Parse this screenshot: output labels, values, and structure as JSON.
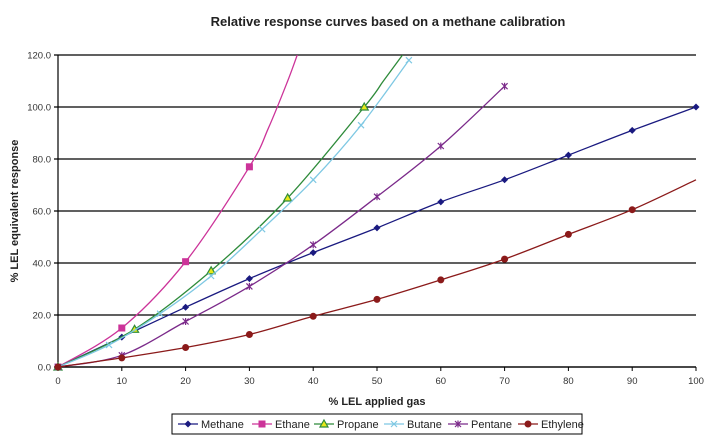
{
  "chart_data": {
    "type": "line",
    "title": "Relative response curves based on a methane calibration",
    "xlabel": "% LEL applied gas",
    "ylabel": "% LEL equivalent response",
    "xlim": [
      0,
      100
    ],
    "ylim": [
      0,
      120
    ],
    "x_ticks": [
      "0",
      "10",
      "20",
      "30",
      "40",
      "50",
      "60",
      "70",
      "80",
      "90",
      "100"
    ],
    "y_ticks": [
      "0.0",
      "20.0",
      "40.0",
      "60.0",
      "80.0",
      "100.0",
      "120.0"
    ],
    "grid": "horizontal",
    "legend_position": "bottom",
    "series": [
      {
        "name": "Methane",
        "color": "#1a1a80",
        "marker": "diamond",
        "points": [
          [
            0,
            0
          ],
          [
            10,
            11.5
          ],
          [
            20,
            23
          ],
          [
            30,
            34
          ],
          [
            40,
            44
          ],
          [
            50,
            53.5
          ],
          [
            60,
            63.5
          ],
          [
            70,
            72
          ],
          [
            80,
            81.5
          ],
          [
            90,
            91
          ],
          [
            100,
            100
          ]
        ],
        "curve_extension": []
      },
      {
        "name": "Ethane",
        "color": "#cc3399",
        "marker": "square",
        "points": [
          [
            0,
            0
          ],
          [
            10,
            15
          ],
          [
            20,
            40.5
          ],
          [
            30,
            77
          ]
        ],
        "curve_extension": [
          [
            33,
            92
          ],
          [
            36,
            110
          ],
          [
            37.5,
            120
          ]
        ]
      },
      {
        "name": "Propane",
        "color": "#2e8b3a",
        "marker": "triangle",
        "points": [
          [
            0,
            0
          ],
          [
            12,
            14.5
          ],
          [
            24,
            37
          ],
          [
            36,
            65
          ],
          [
            48,
            100
          ]
        ],
        "curve_extension": [
          [
            51,
            110
          ],
          [
            54,
            120
          ]
        ]
      },
      {
        "name": "Butane",
        "color": "#7ec8e3",
        "marker": "x",
        "points": [
          [
            0,
            0
          ],
          [
            8,
            8.5
          ],
          [
            16,
            20.5
          ],
          [
            24,
            35
          ],
          [
            32,
            53
          ],
          [
            40,
            72
          ],
          [
            47.5,
            93
          ],
          [
            55,
            118
          ]
        ],
        "curve_extension": []
      },
      {
        "name": "Pentane",
        "color": "#7b2a8a",
        "marker": "star",
        "points": [
          [
            0,
            0
          ],
          [
            10,
            4.5
          ],
          [
            20,
            17.5
          ],
          [
            30,
            31
          ],
          [
            40,
            47
          ],
          [
            50,
            65.5
          ],
          [
            60,
            85
          ],
          [
            70,
            108
          ]
        ],
        "curve_extension": []
      },
      {
        "name": "Ethylene",
        "color": "#8b1a1a",
        "marker": "circle",
        "points": [
          [
            0,
            0
          ],
          [
            10,
            3.5
          ],
          [
            20,
            7.5
          ],
          [
            30,
            12.5
          ],
          [
            40,
            19.5
          ],
          [
            50,
            26
          ],
          [
            60,
            33.5
          ],
          [
            70,
            41.5
          ],
          [
            80,
            51
          ],
          [
            90,
            60.5
          ]
        ],
        "curve_extension": [
          [
            100,
            72
          ]
        ]
      }
    ]
  }
}
